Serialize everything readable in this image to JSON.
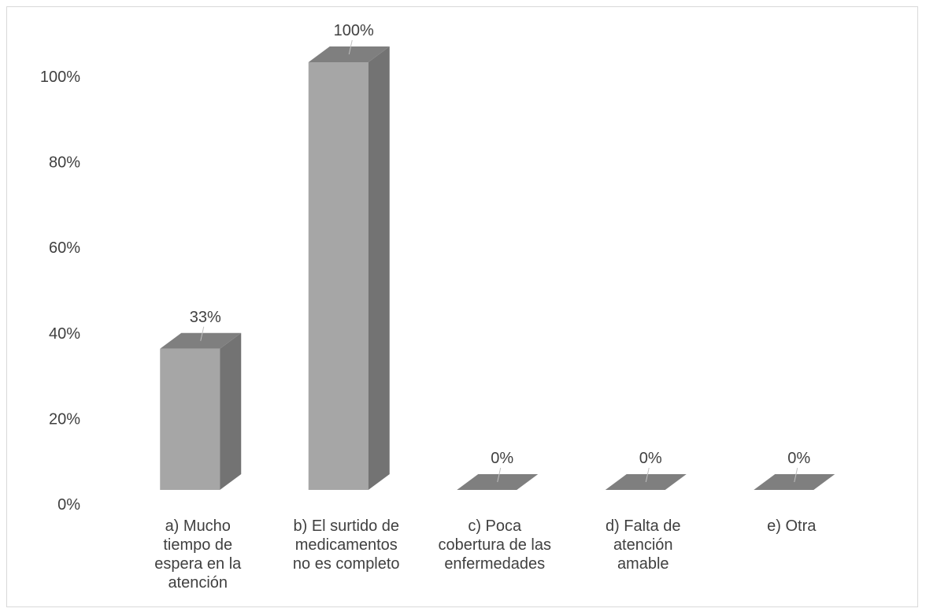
{
  "chart_data": {
    "type": "bar",
    "title": "",
    "xlabel": "",
    "ylabel": "",
    "categories": [
      [
        "a) Mucho",
        "tiempo de",
        "espera en la",
        "atención"
      ],
      [
        "b) El surtido de",
        "medicamentos",
        "no es completo"
      ],
      [
        "c) Poca",
        "cobertura de las",
        "enfermedades"
      ],
      [
        "d) Falta de",
        "atención",
        "amable"
      ],
      [
        "e) Otra"
      ]
    ],
    "values": [
      33,
      100,
      0,
      0,
      0
    ],
    "data_labels": [
      "33%",
      "100%",
      "0%",
      "0%",
      "0%"
    ],
    "ylim": [
      0,
      100
    ],
    "yticks": [
      "0%",
      "20%",
      "40%",
      "60%",
      "80%",
      "100%"
    ],
    "grid": false,
    "legend": "none",
    "colors": {
      "front": "#a6a6a6",
      "side": "#737373",
      "top": "#7f7f7f",
      "text": "#404040",
      "frame": "#d9d9d9"
    }
  }
}
